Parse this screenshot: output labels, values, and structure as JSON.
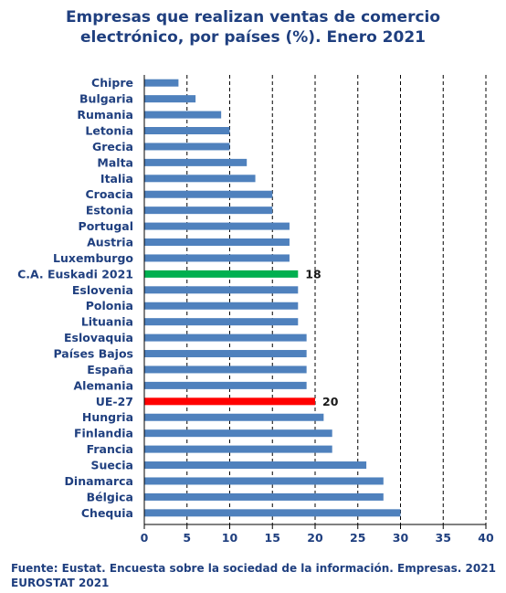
{
  "title_line1": "Empresas que realizan ventas de comercio",
  "title_line2": "electrónico, por países (%). Enero 2021",
  "source_line1": "Fuente: Eustat. Encuesta sobre la sociedad de la información. Empresas. 2021",
  "source_line2": "EUROSTAT 2021",
  "colors": {
    "default_bar": "#4f81bd",
    "highlight_euskadi": "#00b050",
    "highlight_eu": "#ff0000",
    "text": "#1f3f7f"
  },
  "chart_data": {
    "type": "bar",
    "orientation": "horizontal",
    "xlim": [
      0,
      40
    ],
    "xticks": [
      0,
      5,
      10,
      15,
      20,
      25,
      30,
      35,
      40
    ],
    "grid": "vertical dashed lines",
    "categories": [
      "Chipre",
      "Bulgaria",
      "Rumania",
      "Letonia",
      "Grecia",
      "Malta",
      "Italia",
      "Croacia",
      "Estonia",
      "Portugal",
      "Austria",
      "Luxemburgo",
      "C.A. Euskadi 2021",
      "Eslovenia",
      "Polonia",
      "Lituania",
      "Eslovaquia",
      "Países Bajos",
      "España",
      "Alemania",
      "UE-27",
      "Hungria",
      "Finlandia",
      "Francia",
      "Suecia",
      "Dinamarca",
      "Bélgica",
      "Chequia"
    ],
    "values": [
      4,
      6,
      9,
      10,
      10,
      12,
      13,
      15,
      15,
      17,
      17,
      17,
      18,
      18,
      18,
      18,
      19,
      19,
      19,
      19,
      20,
      21,
      22,
      22,
      26,
      28,
      28,
      30
    ],
    "highlights": [
      {
        "category": "C.A. Euskadi 2021",
        "color": "#00b050",
        "label": "18"
      },
      {
        "category": "UE-27",
        "color": "#ff0000",
        "label": "20"
      }
    ]
  }
}
